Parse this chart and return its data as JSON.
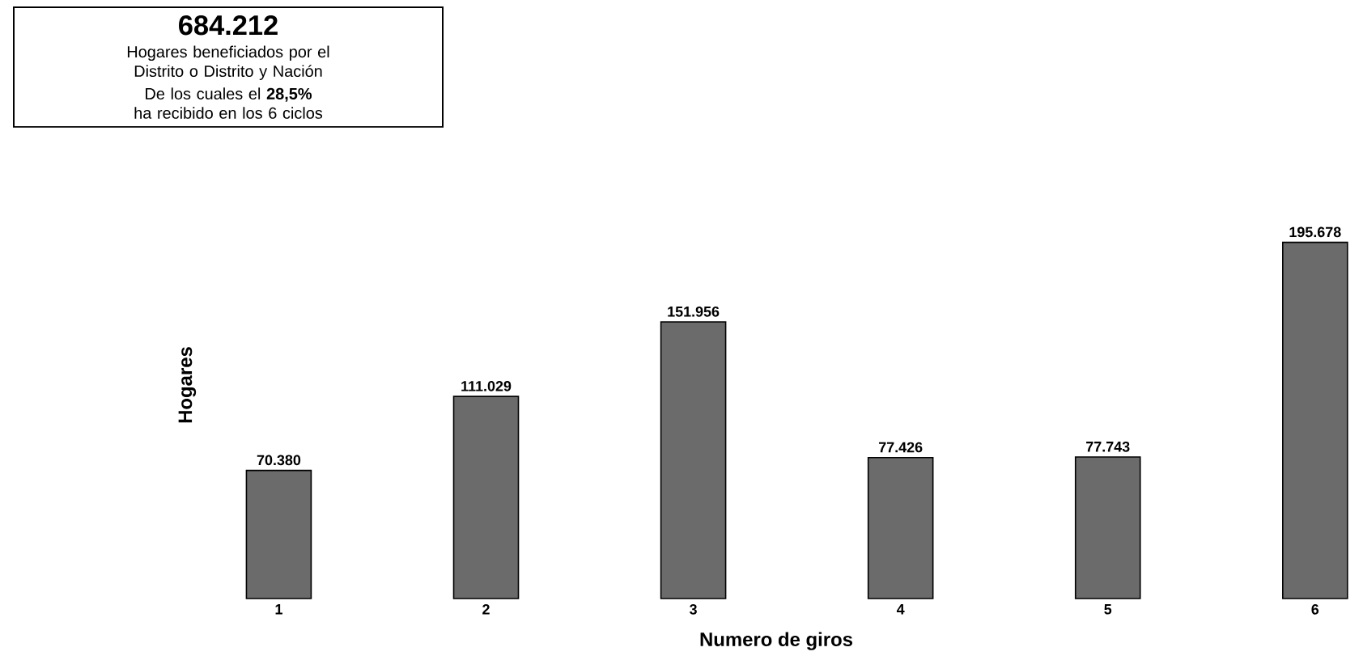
{
  "chart_data": {
    "type": "bar",
    "xlabel": "Numero de giros",
    "ylabel": "Hogares",
    "categories": [
      "1",
      "2",
      "3",
      "4",
      "5",
      "6"
    ],
    "values": [
      70380,
      111029,
      151956,
      77426,
      77743,
      195678
    ],
    "value_labels": [
      "70.380",
      "111.029",
      "151.956",
      "77.426",
      "77.743",
      "195.678"
    ],
    "color": "#6b6b6b",
    "annotations": [
      "684.212",
      "Hogares beneficiados por el Distrito o Distrito y Nación",
      "De los cuales el **28,5%** ha recibido en los 6 ciclos"
    ]
  }
}
